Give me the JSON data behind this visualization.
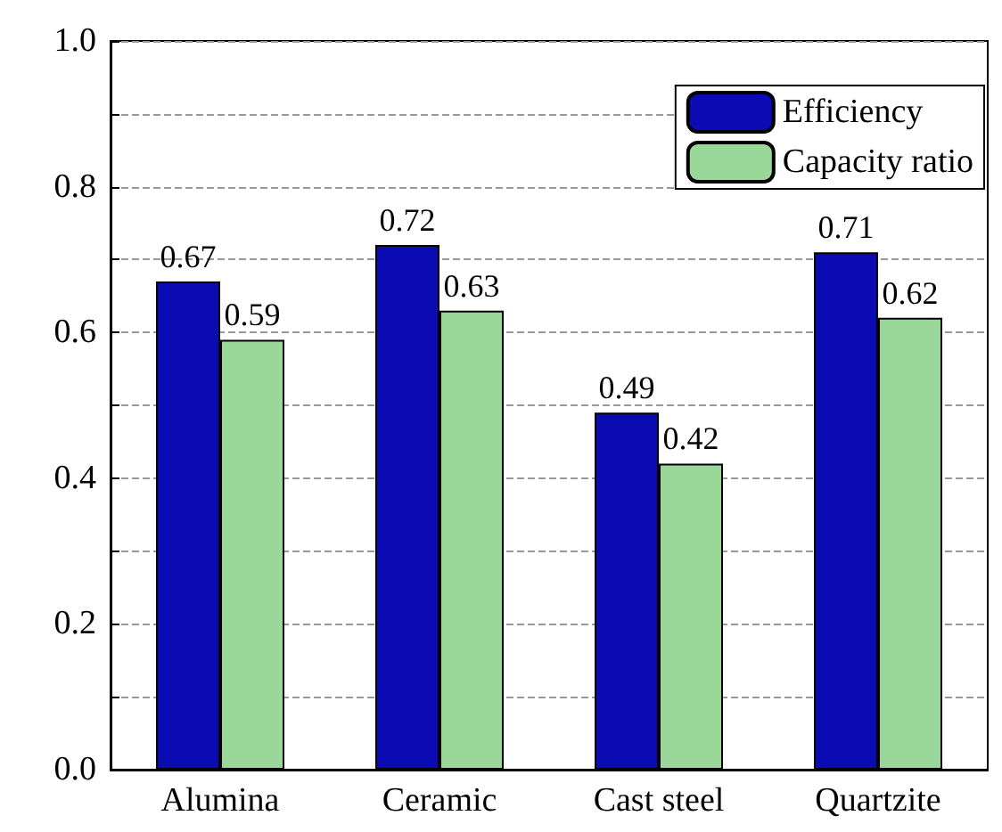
{
  "chart_data": {
    "type": "bar",
    "categories": [
      "Alumina",
      "Ceramic",
      "Cast steel",
      "Quartzite"
    ],
    "series": [
      {
        "name": "Efficiency",
        "color": "#0b0bb3",
        "values": [
          0.67,
          0.72,
          0.49,
          0.71
        ]
      },
      {
        "name": "Capacity ratio",
        "color": "#9ad89a",
        "values": [
          0.59,
          0.63,
          0.42,
          0.62
        ]
      }
    ],
    "ylim": [
      0,
      1.0
    ],
    "yticks": [
      {
        "value": 0,
        "label": "0.0"
      },
      {
        "value": 0.1,
        "label": null
      },
      {
        "value": 0.2,
        "label": "0.2"
      },
      {
        "value": 0.3,
        "label": null
      },
      {
        "value": 0.4,
        "label": "0.4"
      },
      {
        "value": 0.5,
        "label": null
      },
      {
        "value": 0.6,
        "label": "0.6"
      },
      {
        "value": 0.7,
        "label": null
      },
      {
        "value": 0.8,
        "label": "0.8"
      },
      {
        "value": 0.9,
        "label": null
      },
      {
        "value": 1.0,
        "label": "1.0"
      }
    ],
    "grid": "y",
    "legend": "top right",
    "data_labels": true
  }
}
